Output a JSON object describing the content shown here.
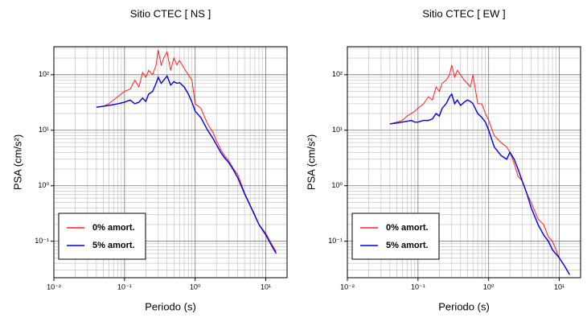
{
  "chart_data": [
    {
      "type": "line",
      "title": "Sitio CTEC [ NS ]",
      "x_label": "Periodo (s)",
      "y_label": "PSA (cm/s²)",
      "x_scale": "log",
      "y_scale": "log",
      "grid": true,
      "legend_position": "lower left",
      "xlim": [
        0.01,
        20
      ],
      "ylim": [
        0.022,
        320
      ],
      "xticks": [
        {
          "value": 0.01,
          "label": "10⁻²"
        },
        {
          "value": 0.1,
          "label": "10⁻¹"
        },
        {
          "value": 1,
          "label": "10⁰"
        },
        {
          "value": 10,
          "label": "10¹"
        }
      ],
      "yticks": [
        {
          "value": 0.1,
          "label": "10⁻¹"
        },
        {
          "value": 1,
          "label": "10⁰"
        },
        {
          "value": 10,
          "label": "10¹"
        },
        {
          "value": 100,
          "label": "10²"
        }
      ],
      "x": [
        0.04,
        0.05,
        0.06,
        0.07,
        0.08,
        0.09,
        0.1,
        0.12,
        0.14,
        0.16,
        0.18,
        0.2,
        0.22,
        0.25,
        0.28,
        0.3,
        0.33,
        0.36,
        0.4,
        0.45,
        0.5,
        0.55,
        0.6,
        0.7,
        0.8,
        0.9,
        1,
        1.2,
        1.5,
        1.8,
        2,
        2.3,
        2.6,
        3,
        3.5,
        4,
        5,
        6,
        7,
        8,
        10,
        12,
        14
      ],
      "series": [
        {
          "name": "0% amort.",
          "color": "#ff2020",
          "values": [
            26,
            27,
            30,
            35,
            40,
            45,
            50,
            55,
            80,
            60,
            110,
            90,
            120,
            100,
            150,
            280,
            150,
            200,
            260,
            120,
            200,
            150,
            180,
            130,
            100,
            80,
            30,
            25,
            13,
            9,
            6.5,
            4.5,
            3.5,
            2.8,
            2,
            1.6,
            0.75,
            0.45,
            0.3,
            0.2,
            0.14,
            0.09,
            0.065
          ]
        },
        {
          "name": "5% amort.",
          "color": "#0000e0",
          "values": [
            26,
            27,
            28,
            29,
            30,
            31,
            32,
            35,
            30,
            32,
            38,
            33,
            45,
            50,
            70,
            90,
            70,
            80,
            95,
            65,
            75,
            70,
            72,
            60,
            45,
            32,
            22,
            17,
            10,
            7,
            5.5,
            4,
            3.2,
            2.6,
            1.9,
            1.4,
            0.72,
            0.44,
            0.29,
            0.2,
            0.13,
            0.085,
            0.06
          ]
        }
      ]
    },
    {
      "type": "line",
      "title": "Sitio CTEC [ EW ]",
      "x_label": "Periodo (s)",
      "y_label": "PSA (cm/s²)",
      "x_scale": "log",
      "y_scale": "log",
      "grid": true,
      "legend_position": "lower left",
      "xlim": [
        0.01,
        20
      ],
      "ylim": [
        0.022,
        320
      ],
      "xticks": [
        {
          "value": 0.01,
          "label": "10⁻²"
        },
        {
          "value": 0.1,
          "label": "10⁻¹"
        },
        {
          "value": 1,
          "label": "10⁰"
        },
        {
          "value": 10,
          "label": "10¹"
        }
      ],
      "yticks": [
        {
          "value": 0.1,
          "label": "10⁻¹"
        },
        {
          "value": 1,
          "label": "10⁰"
        },
        {
          "value": 10,
          "label": "10¹"
        },
        {
          "value": 100,
          "label": "10²"
        }
      ],
      "x": [
        0.04,
        0.05,
        0.06,
        0.07,
        0.08,
        0.09,
        0.1,
        0.12,
        0.14,
        0.16,
        0.18,
        0.2,
        0.22,
        0.25,
        0.28,
        0.3,
        0.33,
        0.36,
        0.4,
        0.45,
        0.5,
        0.55,
        0.6,
        0.7,
        0.8,
        0.9,
        1,
        1.2,
        1.5,
        1.8,
        2,
        2.3,
        2.6,
        3,
        3.5,
        4,
        5,
        6,
        7,
        8,
        10,
        12,
        14
      ],
      "series": [
        {
          "name": "0% amort.",
          "color": "#ff2020",
          "values": [
            13,
            14,
            15,
            18,
            20,
            22,
            25,
            30,
            40,
            35,
            60,
            50,
            70,
            80,
            100,
            150,
            90,
            120,
            100,
            80,
            70,
            60,
            100,
            30,
            30,
            20,
            15,
            8,
            6,
            5,
            4,
            2.5,
            1.5,
            1.2,
            0.7,
            0.5,
            0.25,
            0.2,
            0.12,
            0.1,
            0.05,
            0.035,
            0.025
          ]
        },
        {
          "name": "5% amort.",
          "color": "#0000e0",
          "values": [
            13,
            13.5,
            14,
            14.5,
            15,
            14,
            14,
            15,
            15,
            16,
            20,
            18,
            25,
            30,
            40,
            45,
            30,
            35,
            28,
            32,
            35,
            33,
            30,
            20,
            17,
            14,
            10,
            5,
            3.5,
            3,
            4,
            3,
            2,
            1.2,
            0.7,
            0.4,
            0.2,
            0.13,
            0.1,
            0.07,
            0.05,
            0.035,
            0.025
          ]
        }
      ]
    }
  ]
}
